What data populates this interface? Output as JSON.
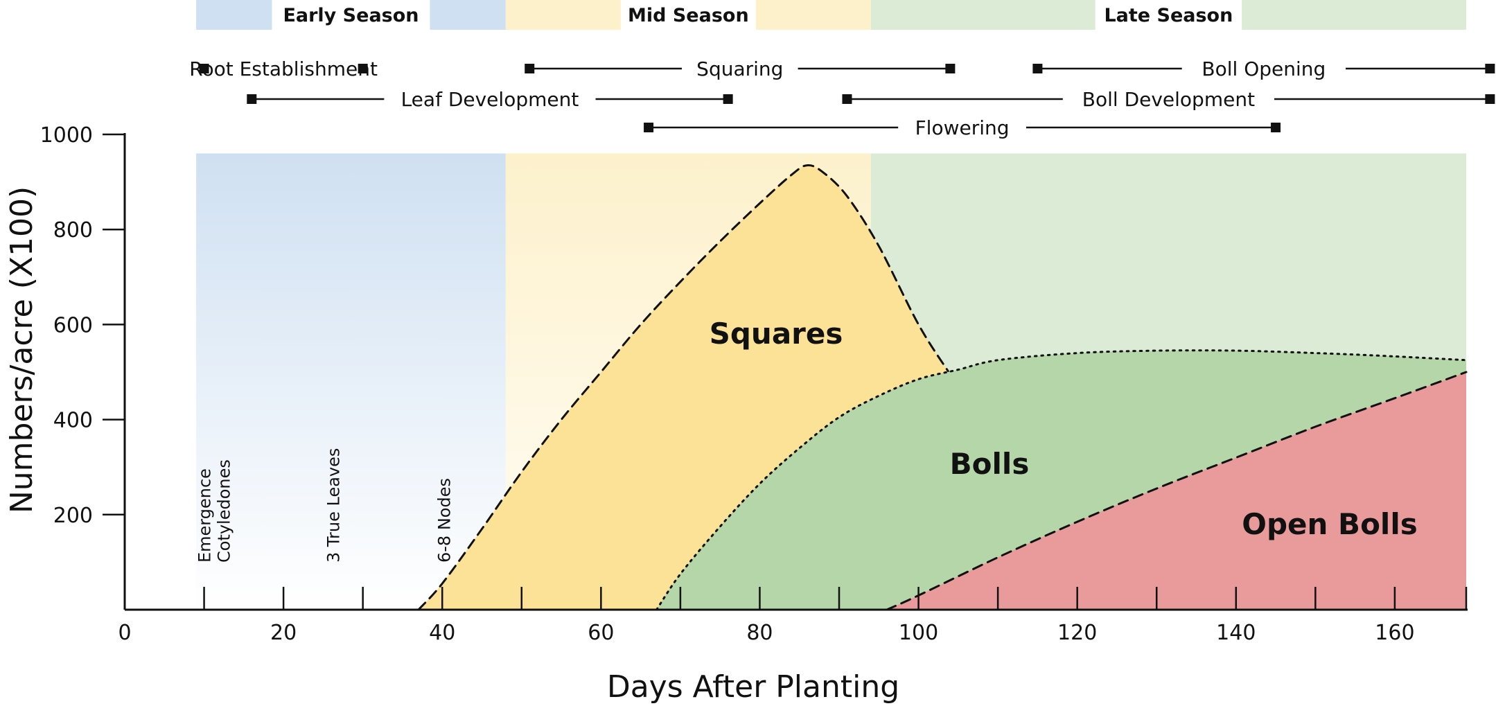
{
  "chart_data": {
    "type": "area",
    "xlabel": "Days After Planting",
    "ylabel": "Numbers/acre (X100)",
    "xlim": [
      0,
      169
    ],
    "ylim": [
      0,
      1000
    ],
    "x_ticks": [
      0,
      20,
      40,
      60,
      80,
      100,
      120,
      140,
      160
    ],
    "x_minor_ticks": [
      10,
      20,
      30,
      40,
      50,
      60,
      70,
      80,
      90,
      100,
      110,
      120,
      130,
      140,
      150,
      160,
      169
    ],
    "y_ticks": [
      200,
      400,
      600,
      800,
      1000
    ],
    "y_top_band": 960,
    "grid": false,
    "seasons": [
      {
        "name": "Early Season",
        "start": 9,
        "end": 48,
        "color": "#cfe0f2"
      },
      {
        "name": "Mid Season",
        "start": 48,
        "end": 94,
        "color": "#fdf1cc"
      },
      {
        "name": "Late Season",
        "start": 94,
        "end": 169,
        "color": "#dcebd6"
      }
    ],
    "growth_stages": [
      {
        "label": "Emergence",
        "label2": "Cotyledones",
        "x": 12
      },
      {
        "label": "3 True Leaves",
        "x": 27
      },
      {
        "label": "6-8 Nodes",
        "x": 41
      }
    ],
    "development_stages": [
      {
        "name": "Root Establishment",
        "start": 10,
        "end": 30,
        "row": 0
      },
      {
        "name": "Squaring",
        "start": 51,
        "end": 104,
        "row": 0
      },
      {
        "name": "Boll Opening",
        "start": 115,
        "end": 172,
        "row": 0
      },
      {
        "name": "Leaf Development",
        "start": 16,
        "end": 76,
        "row": 1
      },
      {
        "name": "Boll Development",
        "start": 91,
        "end": 172,
        "row": 1
      },
      {
        "name": "Flowering",
        "start": 66,
        "end": 145,
        "row": 2
      }
    ],
    "series": [
      {
        "name": "Squares",
        "color": "#fce297",
        "line": "dashed",
        "x": [
          37,
          40,
          45,
          50,
          55,
          60,
          65,
          70,
          75,
          80,
          84,
          86,
          88,
          91,
          95,
          100,
          104
        ],
        "y": [
          0,
          55,
          170,
          290,
          400,
          500,
          600,
          690,
          775,
          855,
          915,
          935,
          920,
          870,
          765,
          600,
          495
        ]
      },
      {
        "name": "Bolls",
        "color": "#b5d6a8",
        "line": "dotted",
        "x": [
          67,
          70,
          75,
          80,
          85,
          90,
          95,
          100,
          105,
          110,
          120,
          130,
          140,
          150,
          160,
          169
        ],
        "y": [
          0,
          75,
          175,
          265,
          340,
          405,
          450,
          485,
          505,
          525,
          540,
          545,
          545,
          540,
          533,
          525
        ]
      },
      {
        "name": "Open Bolls",
        "color": "#e99a9a",
        "line": "dashed",
        "x": [
          96,
          100,
          110,
          120,
          130,
          140,
          150,
          160,
          169
        ],
        "y": [
          0,
          30,
          110,
          185,
          255,
          320,
          385,
          445,
          500
        ]
      }
    ]
  }
}
